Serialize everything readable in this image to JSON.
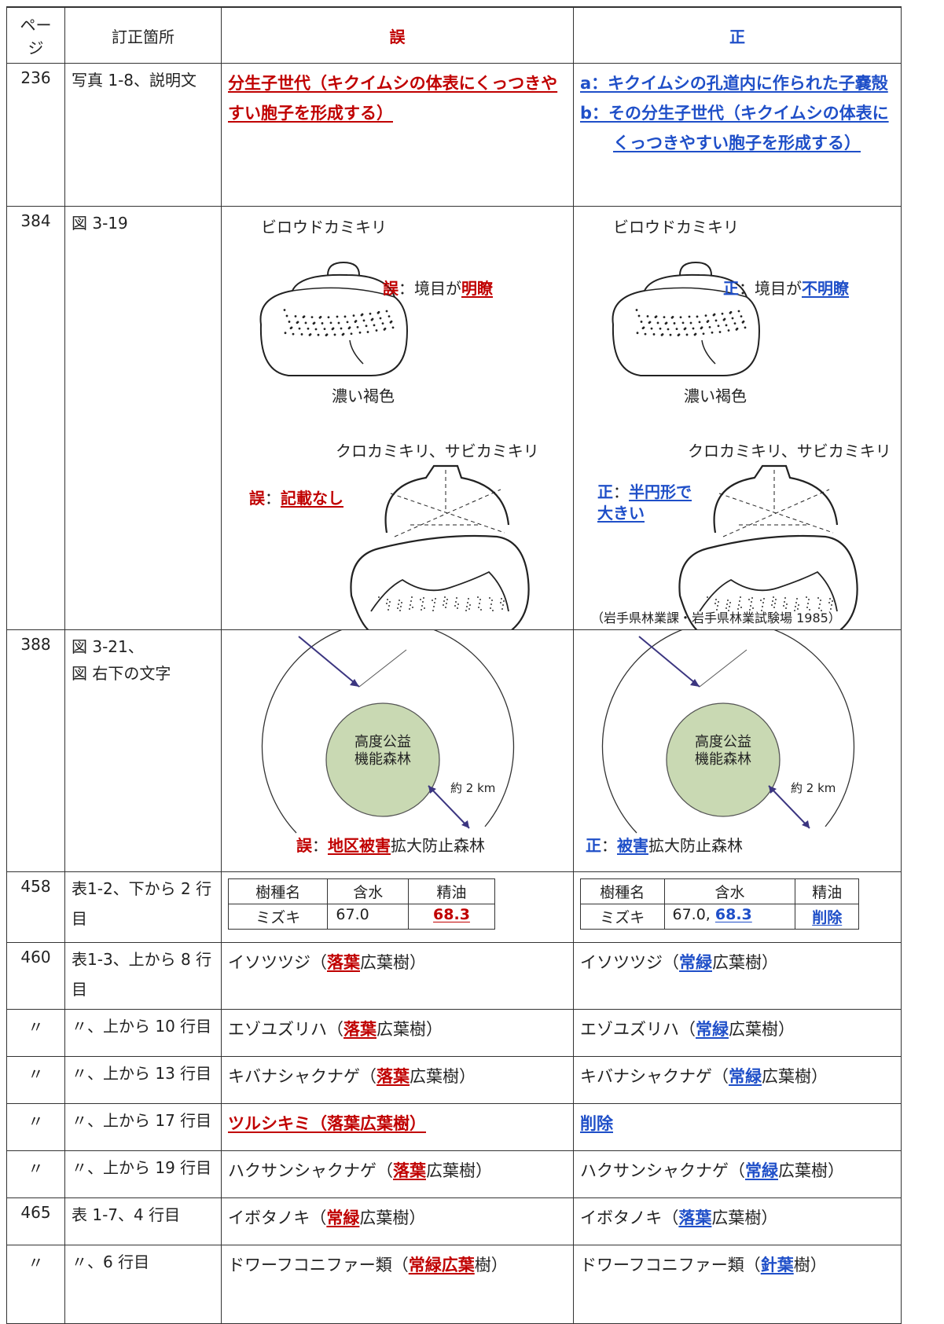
{
  "header": {
    "page": "ページ",
    "location": "訂正箇所",
    "wrong": "誤",
    "right": "正"
  },
  "rows": [
    {
      "page": "236",
      "location": [
        "写真 1-8、説明文"
      ],
      "wrong": [
        [
          {
            "em": "分生子世代（キクイムシの体表にくっつきやすい胞子を形成する）"
          }
        ]
      ],
      "right": [
        [
          {
            "em": "a：キクイムシの孔道内に作られた子嚢殻"
          }
        ],
        [
          {
            "em": "b：その分生子世代（キクイムシの体表にくっつきやすい胞子を形成する）"
          }
        ]
      ]
    },
    {
      "page": "384",
      "location": [
        "図 3-19"
      ],
      "wrong": {
        "species1": "ビロウドカミキリ",
        "callout1": [
          {
            "mark": "誤"
          },
          "：境目が",
          {
            "em": "明瞭"
          }
        ],
        "label_dark": "濃い褐色",
        "species2": "クロカミキリ、サビカミキリ",
        "callout2": [
          {
            "mark": "誤"
          },
          "：",
          {
            "em": "記載なし"
          }
        ]
      },
      "right": {
        "species1": "ビロウドカミキリ",
        "callout1": [
          {
            "mark": "正"
          },
          "：境目が",
          {
            "em": "不明瞭"
          }
        ],
        "label_dark": "濃い褐色",
        "species2": "クロカミキリ、サビカミキリ",
        "callout2": [
          {
            "mark": "正"
          },
          "：",
          {
            "em": "半円形で大きい"
          }
        ],
        "source": "（岩手県林業課・岩手県林業試験場 1985）"
      }
    },
    {
      "page": "388",
      "location": [
        "図 3-21、",
        "図 右下の文字"
      ],
      "wrong": {
        "inner": [
          "高度公益",
          "機能森林"
        ],
        "distance": "約 2 km",
        "callout": [
          {
            "mark": "誤"
          },
          "：",
          {
            "em": "地区被害"
          },
          "拡大防止森林"
        ]
      },
      "right": {
        "inner": [
          "高度公益",
          "機能森林"
        ],
        "distance": "約 2 km",
        "callout": [
          {
            "mark": "正"
          },
          "：",
          {
            "em": "被害"
          },
          "拡大防止森林"
        ]
      }
    },
    {
      "page": "458",
      "location": [
        "表1-2、下から 2 行目"
      ],
      "wrong": {
        "table": {
          "header": [
            "樹種名",
            "含水",
            "精油"
          ],
          "row": [
            [
              "ミズキ"
            ],
            [
              "67.0"
            ],
            [
              {
                "em": "68.3"
              }
            ]
          ]
        }
      },
      "right": {
        "table": {
          "header": [
            "樹種名",
            "含水",
            "精油"
          ],
          "row": [
            [
              "ミズキ"
            ],
            [
              "67.0, ",
              {
                "em": "68.3"
              }
            ],
            [
              {
                "em": "削除"
              }
            ]
          ]
        }
      }
    },
    {
      "page": "460",
      "location": [
        "表1-3、上から 8 行目"
      ],
      "wrong": [
        [
          "イソツツジ（",
          {
            "em": "落葉"
          },
          "広葉樹）"
        ]
      ],
      "right": [
        [
          "イソツツジ（",
          {
            "em": "常緑"
          },
          "広葉樹）"
        ]
      ]
    },
    {
      "page": "〃",
      "location": [
        "〃、上から 10 行目"
      ],
      "wrong": [
        [
          "エゾユズリハ（",
          {
            "em": "落葉"
          },
          "広葉樹）"
        ]
      ],
      "right": [
        [
          "エゾユズリハ（",
          {
            "em": "常緑"
          },
          "広葉樹）"
        ]
      ]
    },
    {
      "page": "〃",
      "location": [
        "〃、上から 13 行目"
      ],
      "wrong": [
        [
          "キバナシャクナゲ（",
          {
            "em": "落葉"
          },
          "広葉樹）"
        ]
      ],
      "right": [
        [
          "キバナシャクナゲ（",
          {
            "em": "常緑"
          },
          "広葉樹）"
        ]
      ]
    },
    {
      "page": "〃",
      "location": [
        "〃、上から 17 行目"
      ],
      "wrong": [
        [
          {
            "em": "ツルシキミ（落葉広葉樹）"
          }
        ]
      ],
      "right": [
        [
          {
            "em": "削除"
          }
        ]
      ]
    },
    {
      "page": "〃",
      "location": [
        "〃、上から 19 行目"
      ],
      "wrong": [
        [
          "ハクサンシャクナゲ（",
          {
            "em": "落葉"
          },
          "広葉樹）"
        ]
      ],
      "right": [
        [
          "ハクサンシャクナゲ（",
          {
            "em": "常緑"
          },
          "広葉樹）"
        ]
      ]
    },
    {
      "page": "465",
      "location": [
        "表 1-7、4 行目"
      ],
      "wrong": [
        [
          "イボタノキ（",
          {
            "em": "常緑"
          },
          "広葉樹）"
        ]
      ],
      "right": [
        [
          "イボタノキ（",
          {
            "em": "落葉"
          },
          "広葉樹）"
        ]
      ]
    },
    {
      "page": "〃",
      "location": [
        "〃、6 行目"
      ],
      "wrong": [
        [
          "ドワーフコニファー類（",
          {
            "em": "常緑広葉"
          },
          "樹）"
        ]
      ],
      "right": [
        [
          "ドワーフコニファー類（",
          {
            "em": "針葉"
          },
          "樹）"
        ]
      ]
    }
  ]
}
